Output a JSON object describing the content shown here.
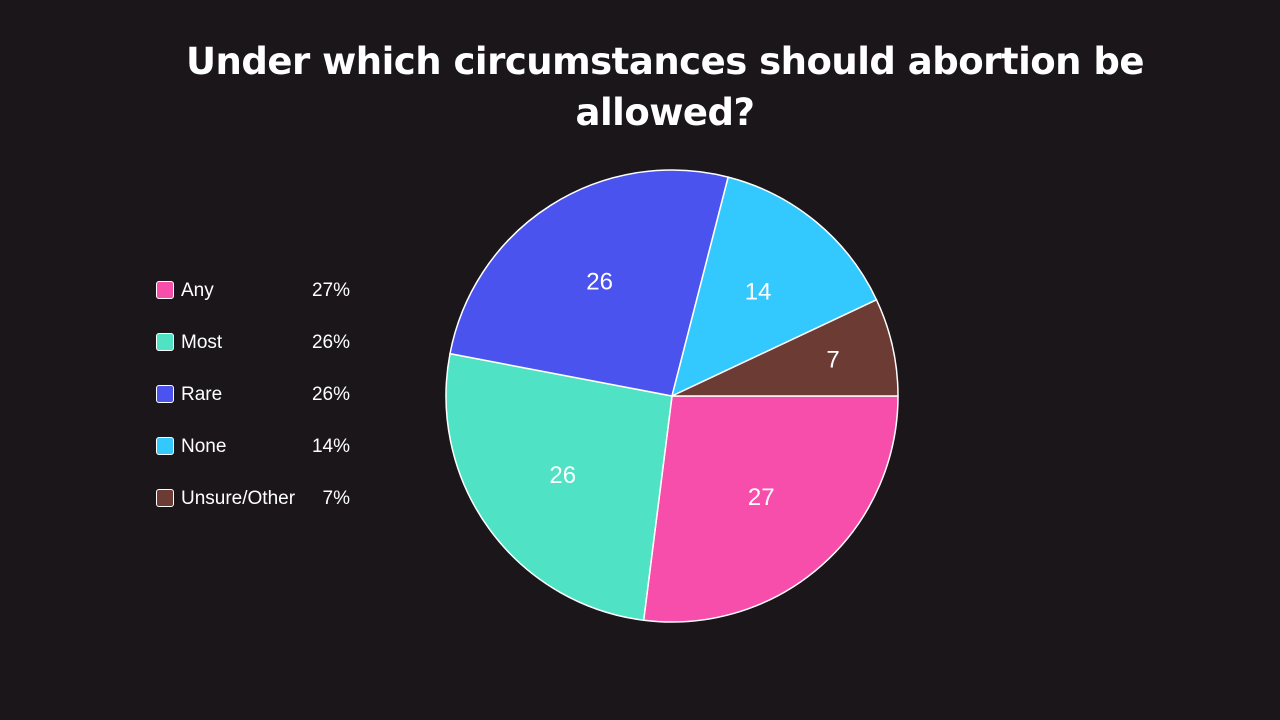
{
  "chart_data": {
    "type": "pie",
    "title": "Under which circumstances should abortion be allowed?",
    "legend_position": "left",
    "slices": [
      {
        "name": "Any",
        "value": 27,
        "legend_text": "27%",
        "color": "#f74eac"
      },
      {
        "name": "Most",
        "value": 26,
        "legend_text": "26%",
        "color": "#4fe2c4"
      },
      {
        "name": "Rare",
        "value": 26,
        "legend_text": "26%",
        "color": "#4b53ef"
      },
      {
        "name": "None",
        "value": 14,
        "legend_text": "14%",
        "color": "#33c8fe"
      },
      {
        "name": "Unsure/Other",
        "value": 7,
        "legend_text": "7%",
        "color": "#6c3b34"
      }
    ]
  }
}
